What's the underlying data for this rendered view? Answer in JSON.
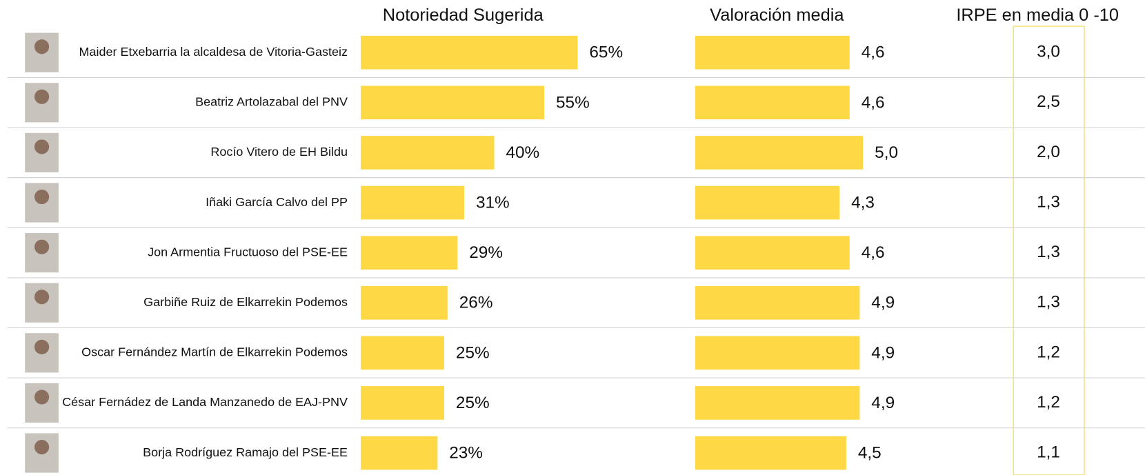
{
  "chart_data": {
    "type": "bar",
    "categories": [
      "Maider Etxebarria la alcaldesa de Vitoria-Gasteiz",
      "Beatriz Artolazabal del PNV",
      "Rocío Vitero de EH Bildu",
      "Iñaki García Calvo del PP",
      "Jon Armentia Fructuoso del PSE-EE",
      "Garbiñe Ruiz de Elkarrekin Podemos",
      "Oscar Fernández Martín de Elkarrekin Podemos",
      "César Fernádez de Landa Manzanedo de EAJ-PNV",
      "Borja Rodríguez Ramajo del PSE-EE"
    ],
    "series": [
      {
        "name": "Notoriedad Sugerida",
        "color": "#fed845",
        "values": [
          65,
          55,
          40,
          31,
          29,
          26,
          25,
          25,
          23
        ],
        "value_labels": [
          "65%",
          "55%",
          "40%",
          "31%",
          "29%",
          "26%",
          "25%",
          "25%",
          "23%"
        ]
      },
      {
        "name": "Valoración  media",
        "color": "#fed845",
        "values": [
          4.6,
          4.6,
          5.0,
          4.3,
          4.6,
          4.9,
          4.9,
          4.9,
          4.5
        ],
        "value_labels": [
          "4,6",
          "4,6",
          "5,0",
          "4,3",
          "4,6",
          "4,9",
          "4,9",
          "4,9",
          "4,5"
        ]
      },
      {
        "name": "IRPE en media 0 -10",
        "color": "#f2e27a",
        "values": [
          3.0,
          2.5,
          2.0,
          1.3,
          1.3,
          1.3,
          1.2,
          1.2,
          1.1
        ],
        "value_labels": [
          "3,0",
          "2,5",
          "2,0",
          "1,3",
          "1,3",
          "1,3",
          "1,2",
          "1,2",
          "1,1"
        ]
      }
    ]
  }
}
